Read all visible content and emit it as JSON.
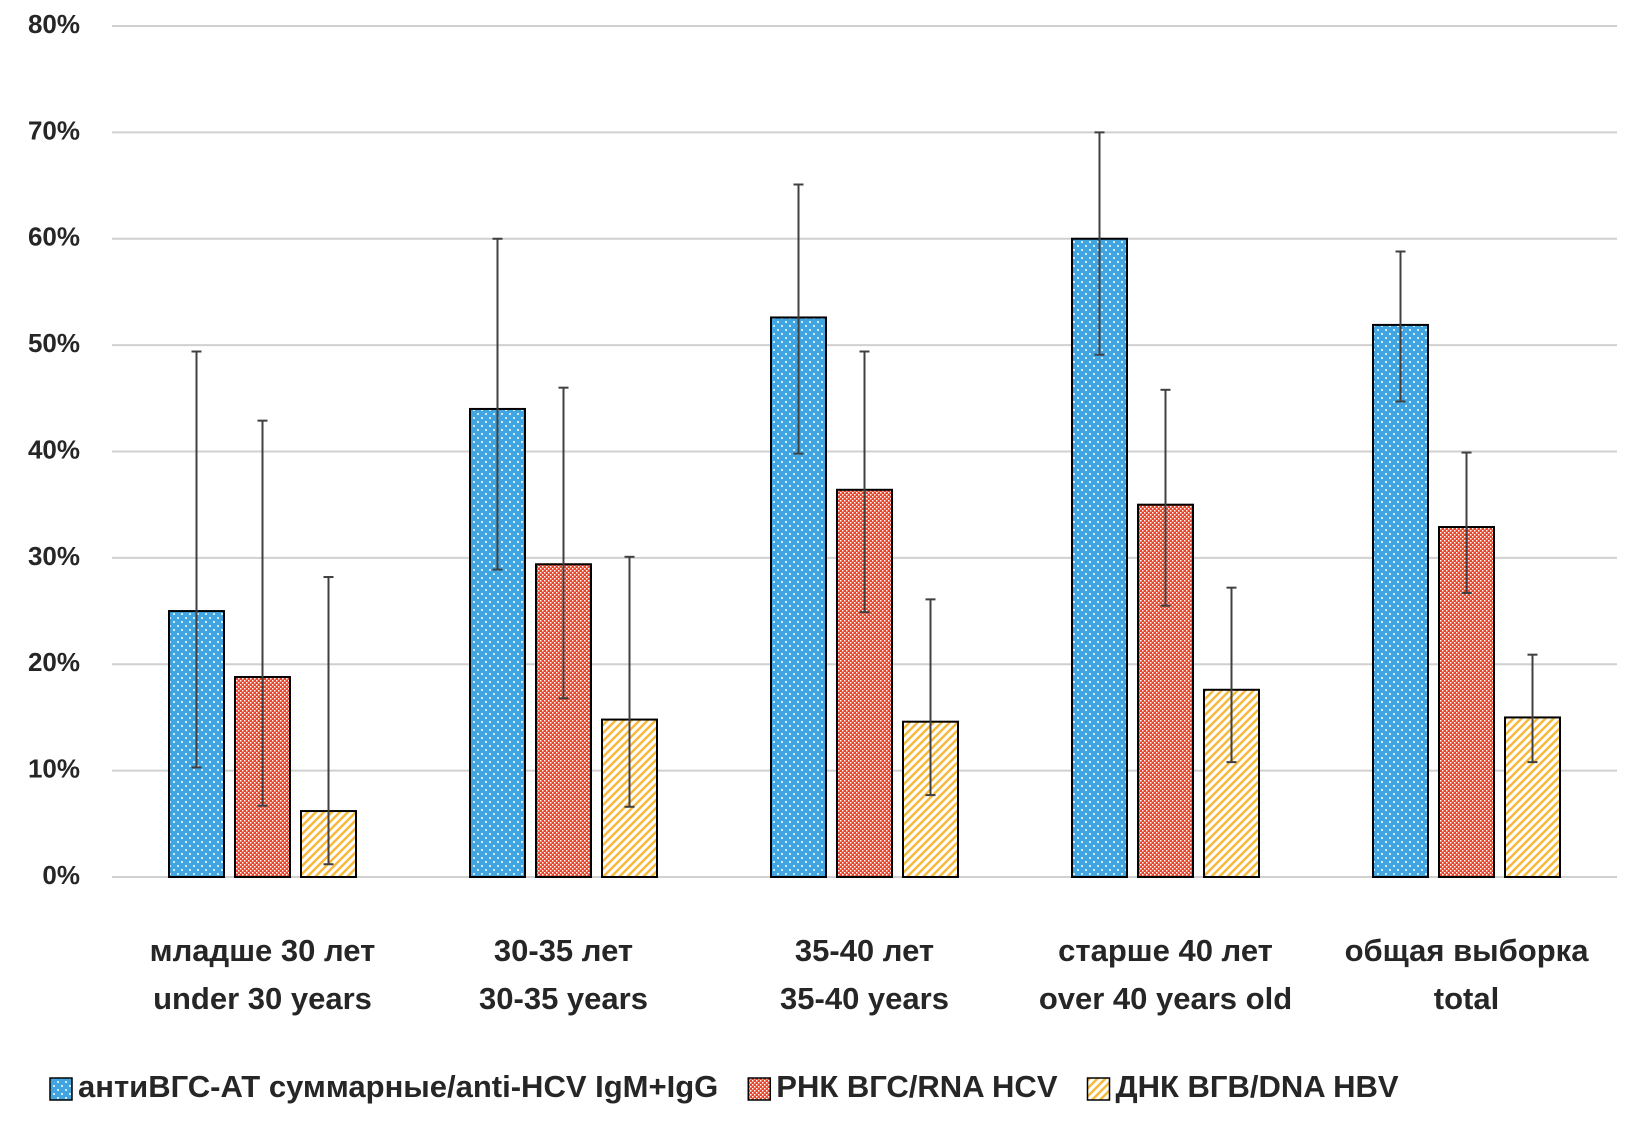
{
  "chart_data": {
    "type": "bar",
    "categories": [
      [
        "младше 30 лет",
        "under 30 years"
      ],
      [
        "30-35 лет",
        "30-35 years"
      ],
      [
        "35-40 лет",
        "35-40 years"
      ],
      [
        "старше 40 лет",
        "over 40 years old"
      ],
      [
        "общая выборка",
        "total"
      ]
    ],
    "series": [
      {
        "name": "антиВГС-АТ суммарные/anti-HCV IgM+IgG",
        "color": "#41a5e1",
        "values": [
          25,
          44,
          52.6,
          60,
          51.9
        ],
        "error_low": [
          10.3,
          28.9,
          39.8,
          49.1,
          44.7
        ],
        "error_high": [
          49.4,
          60,
          65.1,
          70,
          58.8
        ]
      },
      {
        "name": "РНК ВГС/RNA HCV",
        "color": "#e8462a",
        "values": [
          18.8,
          29.4,
          36.4,
          35,
          32.9
        ],
        "error_low": [
          6.7,
          16.8,
          24.9,
          25.5,
          26.7
        ],
        "error_high": [
          42.9,
          46,
          49.4,
          45.8,
          39.9
        ]
      },
      {
        "name": "ДНК ВГВ/DNA HBV",
        "color": "#f6b93b",
        "values": [
          6.2,
          14.8,
          14.6,
          17.6,
          15
        ],
        "error_low": [
          1.2,
          6.6,
          7.7,
          10.8,
          10.8
        ],
        "error_high": [
          28.2,
          30.1,
          26.1,
          27.2,
          20.9
        ]
      }
    ],
    "ylim": [
      0,
      80
    ],
    "yticks": [
      {
        "value": 0,
        "label": "0%"
      },
      {
        "value": 10,
        "label": "10%"
      },
      {
        "value": 20,
        "label": "20%"
      },
      {
        "value": 30,
        "label": "30%"
      },
      {
        "value": 40,
        "label": "40%"
      },
      {
        "value": 50,
        "label": "50%"
      },
      {
        "value": 60,
        "label": "60%"
      },
      {
        "value": 70,
        "label": "70%"
      },
      {
        "value": 80,
        "label": "80%"
      }
    ],
    "grid": true
  }
}
